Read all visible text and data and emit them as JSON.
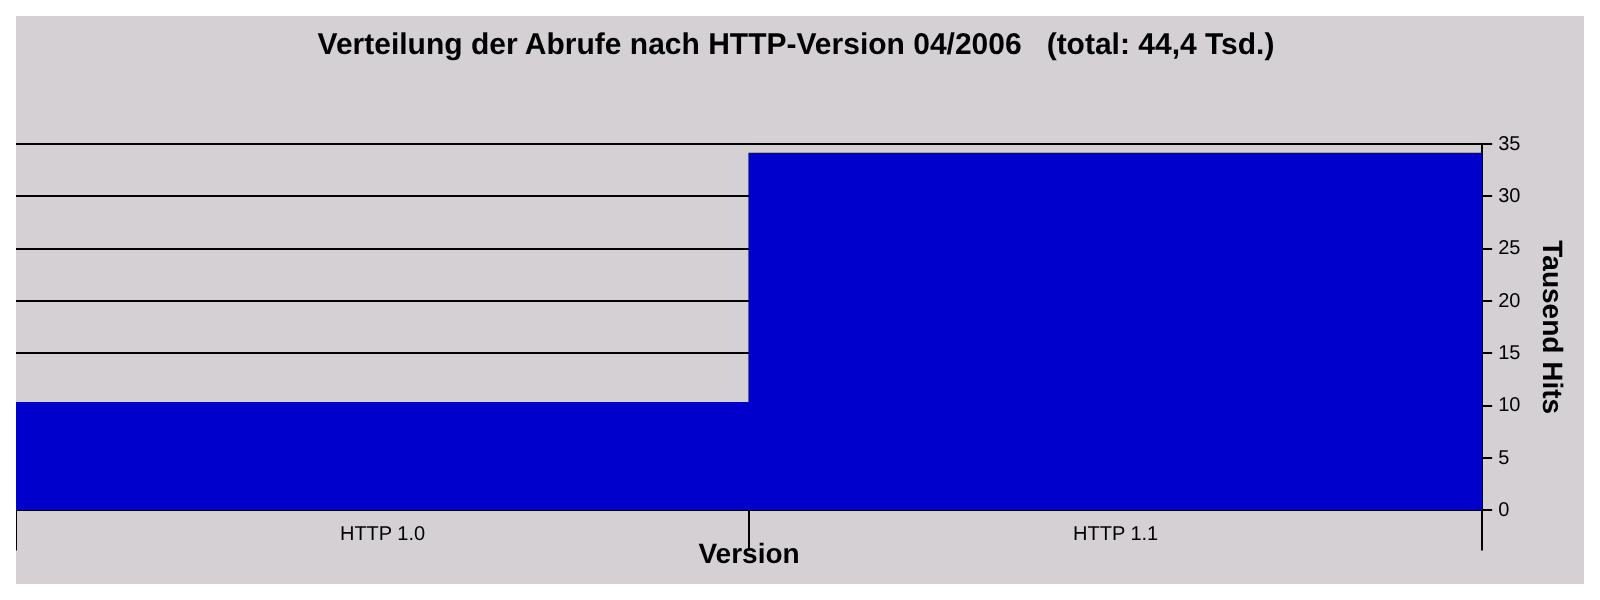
{
  "chart_data": {
    "type": "bar",
    "title": "Verteilung der Abrufe nach HTTP-Version 04/2006   (total: 44,4 Tsd.)",
    "xlabel": "Version",
    "ylabel": "Tausend Hits",
    "categories": [
      "HTTP 1.0",
      "HTTP 1.1"
    ],
    "values": [
      10.3,
      34.1
    ],
    "color": "#0000cc",
    "ylim": [
      0,
      35
    ],
    "yticks": [
      0,
      5,
      10,
      15,
      20,
      25,
      30,
      35
    ],
    "grid": "y",
    "legend": false
  }
}
